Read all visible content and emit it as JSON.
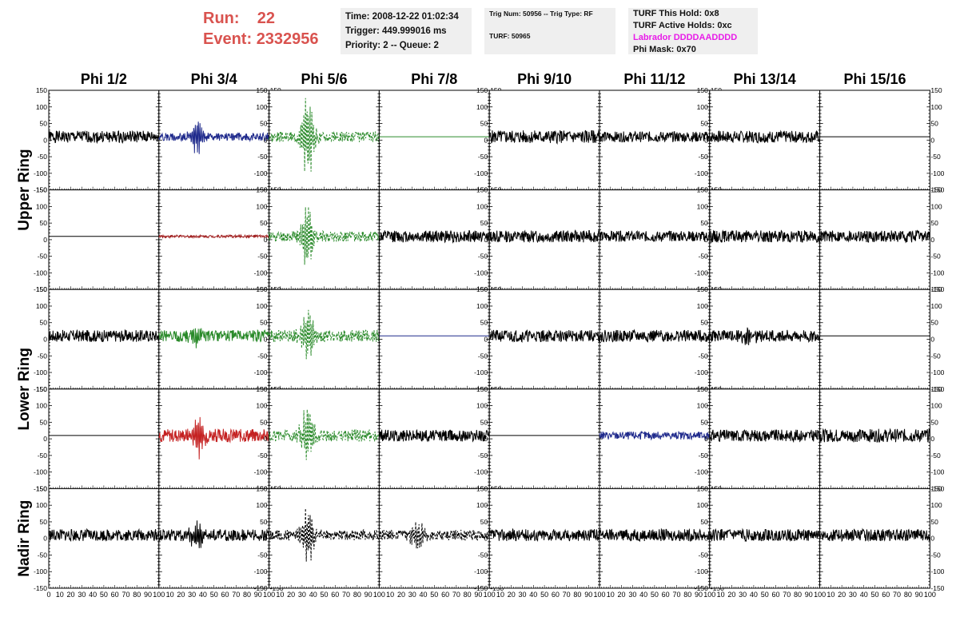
{
  "header": {
    "run_label": "Run:",
    "run_value": "22",
    "event_label": "Event:",
    "event_value": "2332956",
    "time": "Time: 2008-12-22 01:02:34",
    "trigger": "Trigger: 449.999016 ms",
    "priority": "Priority: 2 -- Queue: 2",
    "trig_num": "Trig Num: 50956 -- Trig Type: RF",
    "turf": "TURF: 50965",
    "turf_hold": "TURF This Hold: 0x8",
    "turf_active": "TURF Active Holds: 0xc",
    "labrador": "Labrador DDDDAADDDD",
    "phi_mask": "Phi Mask: 0x70"
  },
  "colors": {
    "run_text": "#d9534f",
    "labrador_text": "#e81ce8",
    "info_bg": "#efefef"
  },
  "chart_data": {
    "type": "line",
    "columns": [
      "Phi 1/2",
      "Phi 3/4",
      "Phi 5/6",
      "Phi 7/8",
      "Phi 9/10",
      "Phi 11/12",
      "Phi 13/14",
      "Phi 15/16"
    ],
    "row_labels": [
      "Upper Ring",
      "Lower Ring",
      "Nadir Ring"
    ],
    "row_label_spans": [
      2,
      2,
      1
    ],
    "xlim": [
      0,
      100
    ],
    "ylim": [
      -150,
      150
    ],
    "x_ticks": [
      "0",
      "10",
      "20",
      "30",
      "40",
      "50",
      "60",
      "70",
      "80",
      "90",
      "100"
    ],
    "y_ticks": [
      "150",
      "100",
      "50",
      "0",
      "-50",
      "-100",
      "-150"
    ],
    "panels": [
      [
        {
          "color": "#000000",
          "dash": false,
          "flat": false,
          "amp": 18,
          "burst": 0,
          "seed": 1
        },
        {
          "color": "#1f2a8c",
          "dash": false,
          "flat": false,
          "amp": 12,
          "burst": 55,
          "seed": 2
        },
        {
          "color": "#2a8a2a",
          "dash": true,
          "flat": false,
          "amp": 16,
          "burst": 150,
          "seed": 3
        },
        {
          "color": "#2a8a2a",
          "dash": false,
          "flat": true,
          "amp": 0,
          "burst": 0,
          "seed": 4
        },
        {
          "color": "#000000",
          "dash": false,
          "flat": false,
          "amp": 20,
          "burst": 0,
          "seed": 5
        },
        {
          "color": "#000000",
          "dash": false,
          "flat": false,
          "amp": 16,
          "burst": 0,
          "seed": 6
        },
        {
          "color": "#000000",
          "dash": false,
          "flat": false,
          "amp": 18,
          "burst": 0,
          "seed": 7
        },
        {
          "color": "#000000",
          "dash": false,
          "flat": true,
          "amp": 0,
          "burst": 0,
          "seed": 8
        }
      ],
      [
        {
          "color": "#000000",
          "dash": false,
          "flat": true,
          "amp": 0,
          "burst": 0,
          "seed": 9
        },
        {
          "color": "#a01f1f",
          "dash": false,
          "flat": false,
          "amp": 4,
          "burst": 0,
          "seed": 10
        },
        {
          "color": "#2a8a2a",
          "dash": true,
          "flat": false,
          "amp": 16,
          "burst": 100,
          "seed": 11
        },
        {
          "color": "#000000",
          "dash": false,
          "flat": false,
          "amp": 18,
          "burst": 0,
          "seed": 12
        },
        {
          "color": "#000000",
          "dash": false,
          "flat": false,
          "amp": 18,
          "burst": 0,
          "seed": 13
        },
        {
          "color": "#000000",
          "dash": false,
          "flat": false,
          "amp": 16,
          "burst": 0,
          "seed": 14
        },
        {
          "color": "#000000",
          "dash": false,
          "flat": false,
          "amp": 18,
          "burst": 0,
          "seed": 15
        },
        {
          "color": "#000000",
          "dash": false,
          "flat": false,
          "amp": 18,
          "burst": 0,
          "seed": 16
        }
      ],
      [
        {
          "color": "#000000",
          "dash": false,
          "flat": false,
          "amp": 18,
          "burst": 0,
          "seed": 17
        },
        {
          "color": "#2a8a2a",
          "dash": false,
          "flat": false,
          "amp": 18,
          "burst": 30,
          "seed": 18
        },
        {
          "color": "#2a8a2a",
          "dash": true,
          "flat": false,
          "amp": 18,
          "burst": 95,
          "seed": 19
        },
        {
          "color": "#1f2a8c",
          "dash": false,
          "flat": true,
          "amp": 0,
          "burst": 0,
          "seed": 20
        },
        {
          "color": "#000000",
          "dash": false,
          "flat": false,
          "amp": 18,
          "burst": 0,
          "seed": 21
        },
        {
          "color": "#000000",
          "dash": false,
          "flat": false,
          "amp": 18,
          "burst": 0,
          "seed": 22
        },
        {
          "color": "#000000",
          "dash": false,
          "flat": false,
          "amp": 18,
          "burst": 35,
          "seed": 23
        },
        {
          "color": "#000000",
          "dash": false,
          "flat": true,
          "amp": 0,
          "burst": 0,
          "seed": 24
        }
      ],
      [
        {
          "color": "#000000",
          "dash": false,
          "flat": true,
          "amp": 0,
          "burst": 0,
          "seed": 25
        },
        {
          "color": "#c42020",
          "dash": false,
          "flat": false,
          "amp": 20,
          "burst": 70,
          "seed": 26
        },
        {
          "color": "#2a8a2a",
          "dash": true,
          "flat": false,
          "amp": 18,
          "burst": 90,
          "seed": 27
        },
        {
          "color": "#000000",
          "dash": false,
          "flat": false,
          "amp": 18,
          "burst": 0,
          "seed": 28
        },
        {
          "color": "#000000",
          "dash": false,
          "flat": true,
          "amp": 0,
          "burst": 0,
          "seed": 29
        },
        {
          "color": "#1f2a8c",
          "dash": false,
          "flat": false,
          "amp": 12,
          "burst": 0,
          "seed": 30
        },
        {
          "color": "#000000",
          "dash": false,
          "flat": false,
          "amp": 18,
          "burst": 0,
          "seed": 31
        },
        {
          "color": "#000000",
          "dash": false,
          "flat": false,
          "amp": 20,
          "burst": 0,
          "seed": 32
        }
      ],
      [
        {
          "color": "#000000",
          "dash": false,
          "flat": false,
          "amp": 18,
          "burst": 0,
          "seed": 33
        },
        {
          "color": "#000000",
          "dash": false,
          "flat": false,
          "amp": 18,
          "burst": 45,
          "seed": 34
        },
        {
          "color": "#000000",
          "dash": true,
          "flat": false,
          "amp": 16,
          "burst": 90,
          "seed": 35
        },
        {
          "color": "#000000",
          "dash": true,
          "flat": false,
          "amp": 16,
          "burst": 55,
          "seed": 36
        },
        {
          "color": "#000000",
          "dash": false,
          "flat": false,
          "amp": 18,
          "burst": 0,
          "seed": 37
        },
        {
          "color": "#000000",
          "dash": false,
          "flat": false,
          "amp": 18,
          "burst": 0,
          "seed": 38
        },
        {
          "color": "#000000",
          "dash": false,
          "flat": false,
          "amp": 18,
          "burst": 0,
          "seed": 39
        },
        {
          "color": "#000000",
          "dash": false,
          "flat": false,
          "amp": 18,
          "burst": 0,
          "seed": 40
        }
      ]
    ]
  }
}
